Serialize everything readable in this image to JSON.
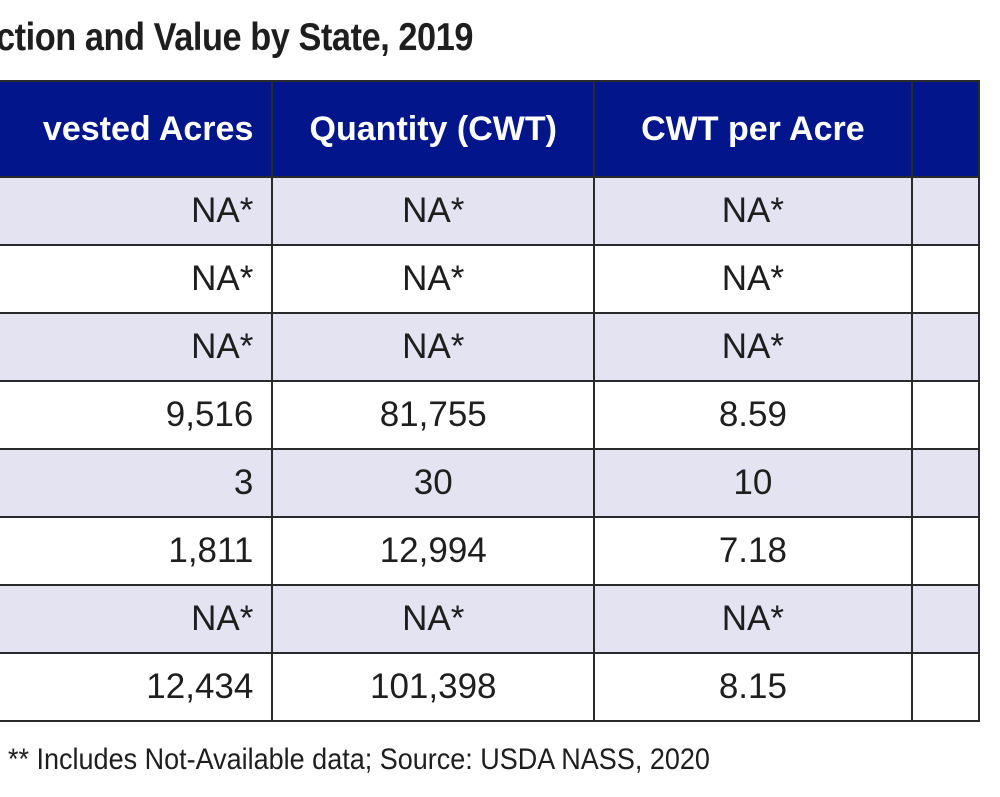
{
  "title": "ction and Value by State, 2019",
  "columns": [
    "vested Acres",
    "Quantity (CWT)",
    "CWT per Acre",
    ""
  ],
  "rows": [
    [
      "NA*",
      "NA*",
      "NA*",
      ""
    ],
    [
      "NA*",
      "NA*",
      "NA*",
      ""
    ],
    [
      "NA*",
      "NA*",
      "NA*",
      ""
    ],
    [
      "9,516",
      "81,755",
      "8.59",
      ""
    ],
    [
      "3",
      "30",
      "10",
      ""
    ],
    [
      "1,811",
      "12,994",
      "7.18",
      ""
    ],
    [
      "NA*",
      "NA*",
      "NA*",
      ""
    ],
    [
      "12,434",
      "101,398",
      "8.15",
      ""
    ]
  ],
  "footnote": "** Includes Not-Available data;  Source: USDA NASS, 2020"
}
